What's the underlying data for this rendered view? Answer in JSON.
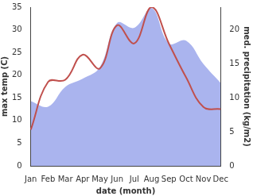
{
  "chart_data": {
    "type": "line",
    "x_label": "date (month)",
    "y_label": "max temp (C)",
    "y2_label": "med. precipitation (kg/m2)",
    "categories": [
      "Jan",
      "Feb",
      "Mar",
      "Apr",
      "May",
      "Jun",
      "Jul",
      "Aug",
      "Sep",
      "Oct",
      "Nov",
      "Dec"
    ],
    "series": [
      {
        "name": "max temp",
        "type": "line",
        "color": "#c0504d",
        "axis": "y",
        "values": [
          8,
          18.5,
          19,
          24.5,
          21.5,
          31,
          27,
          35,
          27,
          19.5,
          13,
          12.5
        ]
      },
      {
        "name": "med. precipitation",
        "type": "area",
        "color": "#aab4ee",
        "axis": "y2",
        "values": [
          9.5,
          8.7,
          11.6,
          12.8,
          14.5,
          21,
          20.3,
          23.2,
          18,
          18.4,
          15,
          12.2
        ]
      }
    ],
    "ylim": [
      0,
      35
    ],
    "yticks": [
      0,
      5,
      10,
      15,
      20,
      25,
      30,
      35
    ],
    "y2lim": [
      0,
      23.33
    ],
    "y2ticks": [
      0,
      5,
      10,
      15,
      20
    ],
    "grid": false
  }
}
